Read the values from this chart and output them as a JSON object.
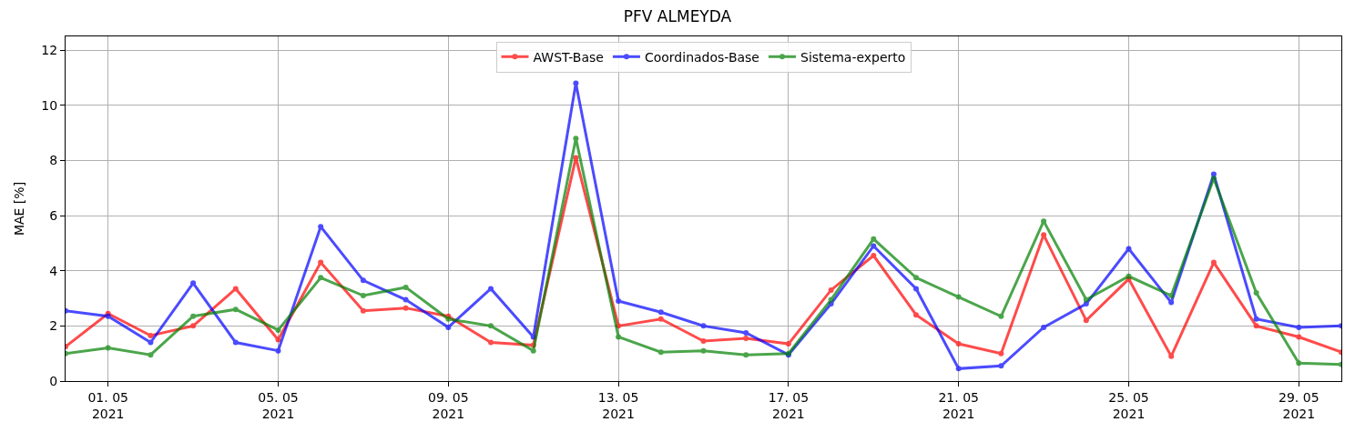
{
  "chart_data": {
    "type": "line",
    "title": "PFV ALMEYDA",
    "ylabel": "MAE [%]",
    "x": [
      "2021-04-30",
      "2021-05-01",
      "2021-05-02",
      "2021-05-03",
      "2021-05-04",
      "2021-05-05",
      "2021-05-06",
      "2021-05-07",
      "2021-05-08",
      "2021-05-09",
      "2021-05-10",
      "2021-05-11",
      "2021-05-12",
      "2021-05-13",
      "2021-05-14",
      "2021-05-15",
      "2021-05-16",
      "2021-05-17",
      "2021-05-18",
      "2021-05-19",
      "2021-05-20",
      "2021-05-21",
      "2021-05-22",
      "2021-05-23",
      "2021-05-24",
      "2021-05-25",
      "2021-05-26",
      "2021-05-27",
      "2021-05-28",
      "2021-05-29",
      "2021-05-30"
    ],
    "series": [
      {
        "name": "AWST-Base",
        "color": "#ff0000",
        "values": [
          1.25,
          2.45,
          1.65,
          2.0,
          3.35,
          1.5,
          4.3,
          2.55,
          2.65,
          2.35,
          1.4,
          1.3,
          8.1,
          2.0,
          2.25,
          1.45,
          1.55,
          1.35,
          3.3,
          4.55,
          2.4,
          1.35,
          1.0,
          5.3,
          2.2,
          3.7,
          0.9,
          4.3,
          2.0,
          1.6,
          1.05
        ]
      },
      {
        "name": "Coordinados-Base",
        "color": "#0000ff",
        "values": [
          2.55,
          2.35,
          1.4,
          3.55,
          1.4,
          1.1,
          5.6,
          3.65,
          2.95,
          1.95,
          3.35,
          1.6,
          10.8,
          2.9,
          2.5,
          2.0,
          1.75,
          0.95,
          2.8,
          4.9,
          3.35,
          0.45,
          0.55,
          1.95,
          2.8,
          4.8,
          2.85,
          7.5,
          2.25,
          1.95,
          2.0
        ]
      },
      {
        "name": "Sistema-experto",
        "color": "#008000",
        "values": [
          1.0,
          1.2,
          0.95,
          2.35,
          2.6,
          1.85,
          3.75,
          3.1,
          3.4,
          2.25,
          2.0,
          1.1,
          8.8,
          1.6,
          1.05,
          1.1,
          0.95,
          1.0,
          2.95,
          5.15,
          3.75,
          3.05,
          2.35,
          5.8,
          2.95,
          3.8,
          3.1,
          7.35,
          3.2,
          0.65,
          0.6
        ]
      }
    ],
    "xlim": [
      "2021-04-30",
      "2021-05-30"
    ],
    "xticks": [
      {
        "value": "2021-05-01",
        "label": "01. 05\n2021"
      },
      {
        "value": "2021-05-05",
        "label": "05. 05\n2021"
      },
      {
        "value": "2021-05-09",
        "label": "09. 05\n2021"
      },
      {
        "value": "2021-05-13",
        "label": "13. 05\n2021"
      },
      {
        "value": "2021-05-17",
        "label": "17. 05\n2021"
      },
      {
        "value": "2021-05-21",
        "label": "21. 05\n2021"
      },
      {
        "value": "2021-05-25",
        "label": "25. 05\n2021"
      },
      {
        "value": "2021-05-29",
        "label": "29. 05\n2021"
      }
    ],
    "ylim": [
      0,
      12.5
    ],
    "yticks": [
      0,
      2,
      4,
      6,
      8,
      10,
      12
    ],
    "grid": true,
    "legend": "top",
    "marker": "circle",
    "line_style": "solid"
  }
}
